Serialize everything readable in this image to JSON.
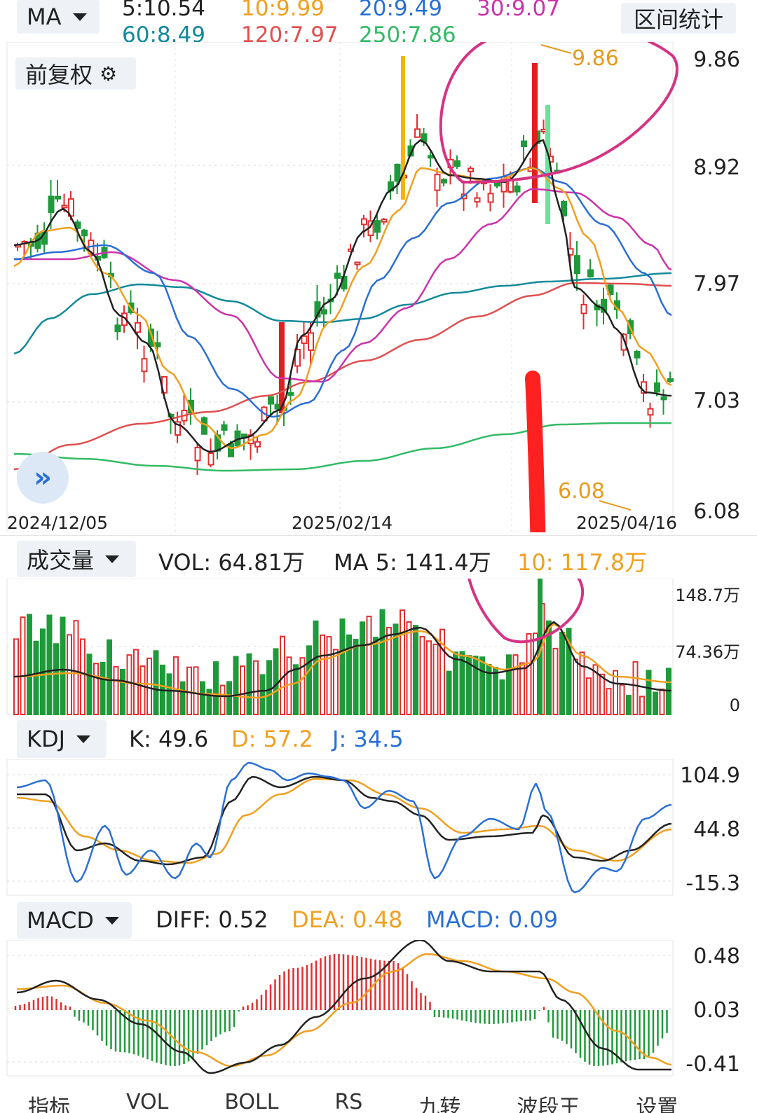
{
  "top_bar": {
    "ma_selector": "MA",
    "interval_stats": "区间统计",
    "ma_values": [
      {
        "label": "5:10.54",
        "color": "#222222"
      },
      {
        "label": "10:9.99",
        "color": "#f0a020"
      },
      {
        "label": "20:9.49",
        "color": "#2a6fd6"
      },
      {
        "label": "30:9.07",
        "color": "#cc33aa"
      },
      {
        "label": "60:8.49",
        "color": "#138a9a"
      },
      {
        "label": "120:7.97",
        "color": "#e05050"
      },
      {
        "label": "250:7.86",
        "color": "#33bb66"
      }
    ]
  },
  "price_panel": {
    "adjust_button": "前复权",
    "y_labels": [
      "9.86",
      "8.92",
      "7.97",
      "7.03",
      "6.08"
    ],
    "dates": [
      "2024/12/05",
      "2025/02/14",
      "2025/04/16"
    ],
    "high_marker": "9.86",
    "low_marker": "6.08",
    "expand_icon": "double-chevron-right-icon"
  },
  "volume_panel": {
    "selector": "成交量",
    "vol_label": "VOL:",
    "vol_value": "64.81万",
    "ma5_label": "MA 5:",
    "ma5_value": "141.4万",
    "ma10_label": "10:",
    "ma10_value": "117.8万",
    "y_labels": [
      "148.7万",
      "74.36万",
      "0"
    ]
  },
  "kdj_panel": {
    "selector": "KDJ",
    "k_label": "K: 49.6",
    "d_label": "D: 57.2",
    "j_label": "J: 34.5",
    "y_labels": [
      "104.9",
      "44.8",
      "-15.3"
    ]
  },
  "macd_panel": {
    "selector": "MACD",
    "diff_label": "DIFF: 0.52",
    "dea_label": "DEA: 0.48",
    "macd_label": "MACD: 0.09",
    "y_labels": [
      "0.48",
      "0.03",
      "-0.41"
    ]
  },
  "bottom_tabs": [
    "指标",
    "VOL",
    "BOLL",
    "RS",
    "九转",
    "波段王",
    "设置"
  ],
  "colors": {
    "up": "#e03030",
    "down": "#1f9a3a",
    "ma5": "#222222",
    "ma10": "#f0a020",
    "ma20": "#2a6fd6",
    "ma30": "#cc33aa",
    "ma60": "#138a9a",
    "ma120": "#e05050",
    "ma250": "#33bb66",
    "annotation_circle": "#d63384",
    "annotation_marker": "#ff2020"
  }
}
